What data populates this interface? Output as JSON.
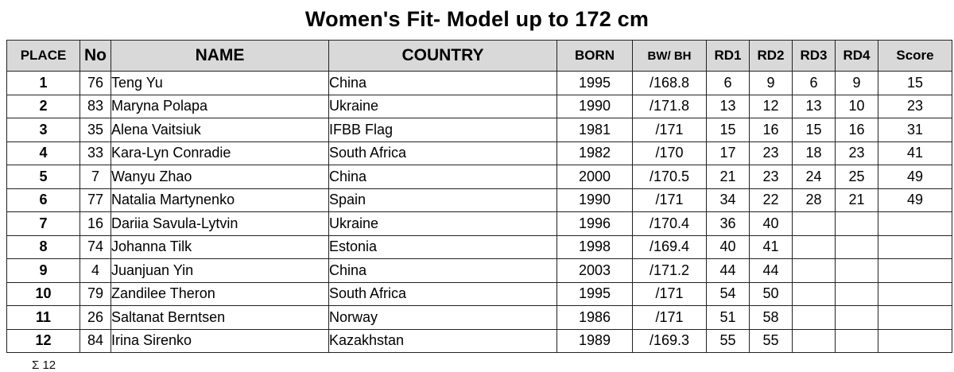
{
  "title": "Women's Fit- Model up to 172 cm",
  "headers": {
    "place": "PLACE",
    "no": "No",
    "name": "NAME",
    "country": "COUNTRY",
    "born": "BORN",
    "bw": "BW/ BH",
    "rd1": "RD1",
    "rd2": "RD2",
    "rd3": "RD3",
    "rd4": "RD4",
    "score": "Score"
  },
  "rows": [
    {
      "place": "1",
      "no": "76",
      "name": "Teng Yu",
      "country": "China",
      "born": "1995",
      "bw": "/168.8",
      "rd1": "6",
      "rd2": "9",
      "rd3": "6",
      "rd4": "9",
      "score": "15"
    },
    {
      "place": "2",
      "no": "83",
      "name": "Maryna Polapa",
      "country": "Ukraine",
      "born": "1990",
      "bw": "/171.8",
      "rd1": "13",
      "rd2": "12",
      "rd3": "13",
      "rd4": "10",
      "score": "23"
    },
    {
      "place": "3",
      "no": "35",
      "name": "Alena Vaitsiuk",
      "country": "IFBB Flag",
      "born": "1981",
      "bw": "/171",
      "rd1": "15",
      "rd2": "16",
      "rd3": "15",
      "rd4": "16",
      "score": "31"
    },
    {
      "place": "4",
      "no": "33",
      "name": "Kara-Lyn Conradie",
      "country": "South Africa",
      "born": "1982",
      "bw": "/170",
      "rd1": "17",
      "rd2": "23",
      "rd3": "18",
      "rd4": "23",
      "score": "41"
    },
    {
      "place": "5",
      "no": "7",
      "name": "Wanyu Zhao",
      "country": "China",
      "born": "2000",
      "bw": "/170.5",
      "rd1": "21",
      "rd2": "23",
      "rd3": "24",
      "rd4": "25",
      "score": "49"
    },
    {
      "place": "6",
      "no": "77",
      "name": "Natalia Martynenko",
      "country": "Spain",
      "born": "1990",
      "bw": "/171",
      "rd1": "34",
      "rd2": "22",
      "rd3": "28",
      "rd4": "21",
      "score": "49"
    },
    {
      "place": "7",
      "no": "16",
      "name": "Dariia Savula-Lytvin",
      "country": "Ukraine",
      "born": "1996",
      "bw": "/170.4",
      "rd1": "36",
      "rd2": "40",
      "rd3": "",
      "rd4": "",
      "score": ""
    },
    {
      "place": "8",
      "no": "74",
      "name": "Johanna Tilk",
      "country": "Estonia",
      "born": "1998",
      "bw": "/169.4",
      "rd1": "40",
      "rd2": "41",
      "rd3": "",
      "rd4": "",
      "score": ""
    },
    {
      "place": "9",
      "no": "4",
      "name": "Juanjuan Yin",
      "country": "China",
      "born": "2003",
      "bw": "/171.2",
      "rd1": "44",
      "rd2": "44",
      "rd3": "",
      "rd4": "",
      "score": ""
    },
    {
      "place": "10",
      "no": "79",
      "name": "Zandilee Theron",
      "country": "South Africa",
      "born": "1995",
      "bw": "/171",
      "rd1": "54",
      "rd2": "50",
      "rd3": "",
      "rd4": "",
      "score": ""
    },
    {
      "place": "11",
      "no": "26",
      "name": "Saltanat Berntsen",
      "country": "Norway",
      "born": "1986",
      "bw": "/171",
      "rd1": "51",
      "rd2": "58",
      "rd3": "",
      "rd4": "",
      "score": ""
    },
    {
      "place": "12",
      "no": "84",
      "name": "Irina Sirenko",
      "country": "Kazakhstan",
      "born": "1989",
      "bw": "/169.3",
      "rd1": "55",
      "rd2": "55",
      "rd3": "",
      "rd4": "",
      "score": ""
    }
  ],
  "footnote": "Σ 12"
}
